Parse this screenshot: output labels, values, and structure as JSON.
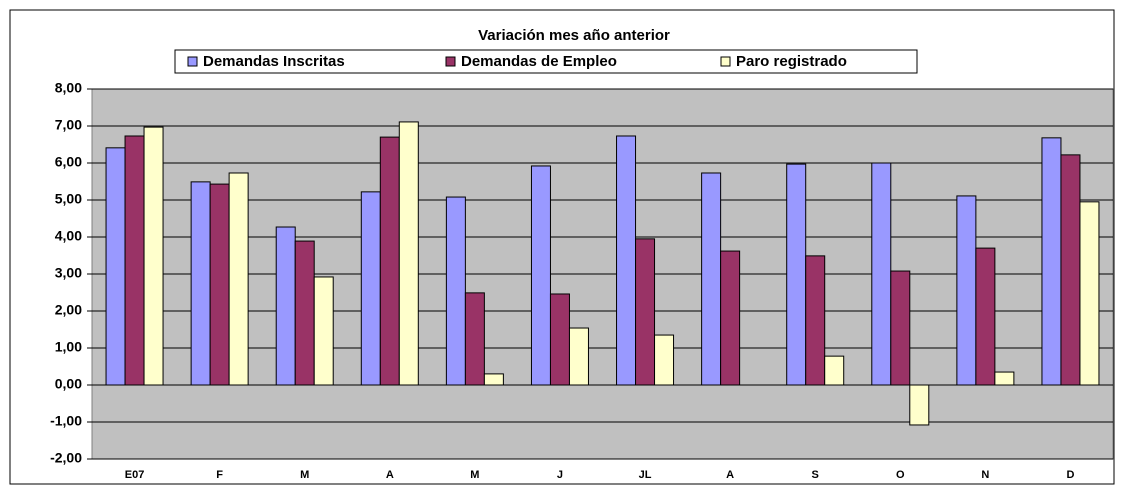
{
  "chart_data": {
    "type": "bar",
    "title": "Variación mes año anterior",
    "categories": [
      "E07",
      "F",
      "M",
      "A",
      "M",
      "J",
      "JL",
      "A",
      "S",
      "O",
      "N",
      "D"
    ],
    "series": [
      {
        "name": "Demandas Inscritas",
        "color": "#9999ff",
        "values": [
          6.41,
          5.49,
          4.27,
          5.22,
          5.08,
          5.92,
          6.73,
          5.73,
          5.97,
          6.0,
          5.11,
          6.68
        ]
      },
      {
        "name": "Demandas de Empleo",
        "color": "#993366",
        "values": [
          6.73,
          5.43,
          3.89,
          6.7,
          2.49,
          2.46,
          3.95,
          3.62,
          3.49,
          3.08,
          3.7,
          6.22
        ]
      },
      {
        "name": "Paro registrado",
        "color": "#ffffcc",
        "values": [
          6.97,
          5.73,
          2.92,
          7.11,
          0.3,
          1.54,
          1.35,
          null,
          0.78,
          -1.08,
          0.35,
          4.95
        ]
      }
    ],
    "ylim": [
      -2,
      8
    ],
    "yticks": [
      {
        "value": -2,
        "label": "-2,00"
      },
      {
        "value": -1,
        "label": "-1,00"
      },
      {
        "value": 0,
        "label": "0,00"
      },
      {
        "value": 1,
        "label": "1,00"
      },
      {
        "value": 2,
        "label": "2,00"
      },
      {
        "value": 3,
        "label": "3,00"
      },
      {
        "value": 4,
        "label": "4,00"
      },
      {
        "value": 5,
        "label": "5,00"
      },
      {
        "value": 6,
        "label": "6,00"
      },
      {
        "value": 7,
        "label": "7,00"
      },
      {
        "value": 8,
        "label": "8,00"
      }
    ],
    "grid": true,
    "plot_background": "#c0c0c0"
  }
}
